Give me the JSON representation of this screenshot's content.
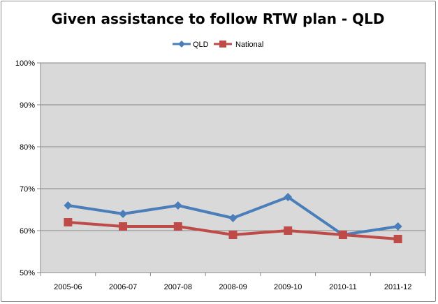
{
  "chart_data": {
    "type": "line",
    "title": "Given assistance to follow RTW plan - QLD",
    "categories": [
      "2005-06",
      "2006-07",
      "2007-08",
      "2008-09",
      "2009-10",
      "2010-11",
      "2011-12"
    ],
    "y_ticks": [
      "50%",
      "60%",
      "70%",
      "80%",
      "90%",
      "100%"
    ],
    "ylim": [
      50,
      100
    ],
    "grid": true,
    "legend_position": "top",
    "series": [
      {
        "name": "QLD",
        "values": [
          66,
          64,
          66,
          63,
          68,
          59,
          61
        ],
        "color": "#4a7ebb",
        "marker": "diamond"
      },
      {
        "name": "National",
        "values": [
          62,
          61,
          61,
          59,
          60,
          59,
          58
        ],
        "color": "#be4b48",
        "marker": "square"
      }
    ]
  }
}
